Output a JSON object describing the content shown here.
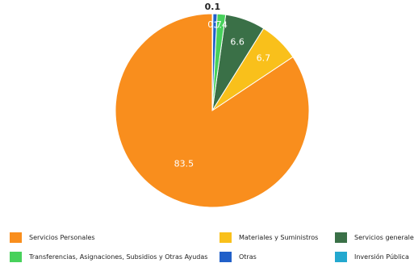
{
  "chart_data": {
    "type": "pie",
    "slices": [
      {
        "label": "Servicios Personales",
        "value": 83.5,
        "display": "83.5",
        "color": "#F98E1D"
      },
      {
        "label": "Materiales y Suministros",
        "value": 6.7,
        "display": "6.7",
        "color": "#F9C01B"
      },
      {
        "label": "Servicios generales",
        "value": 6.6,
        "display": "6.6",
        "color": "#3A7047"
      },
      {
        "label": "Transferencias, Asignaciones, Subsidios y Otras Ayudas",
        "value": 1.4,
        "display": "1.4",
        "color": "#47D15B"
      },
      {
        "label": "Otras",
        "value": 0.7,
        "display": "0.7",
        "color": "#2160C9"
      },
      {
        "label": "Inversión Pública",
        "value": 0.1,
        "display": "0.1",
        "color": "#23A8CF"
      }
    ],
    "legend_position": "bottom"
  }
}
